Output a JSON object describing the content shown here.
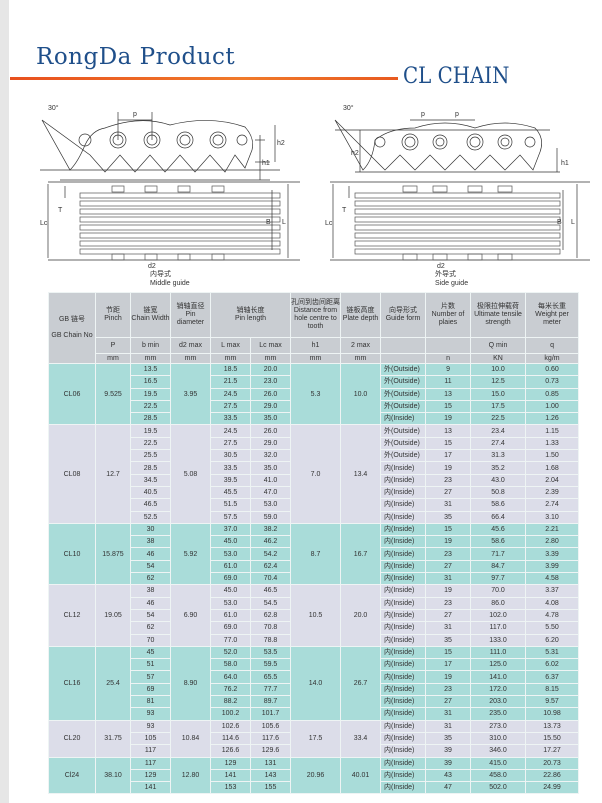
{
  "brand": "RongDa Product",
  "title": "CL CHAIN",
  "diagrams": {
    "labels": {
      "angle": "30°",
      "p": "p",
      "h1": "h1",
      "h2": "h2",
      "T": "T",
      "Lc": "Lc",
      "B": "B",
      "L": "L",
      "d2": "d2"
    },
    "left_caption_cn": "内导式",
    "left_caption_en": "Middle guide",
    "right_caption_cn": "外导式",
    "right_caption_en": "Side guide"
  },
  "table": {
    "headers": {
      "no_cn": "GB 链号",
      "no_en": "GB Chain No",
      "pitch_cn": "节距",
      "pitch_en": "Pinch",
      "pitch_sym": "P",
      "pitch_unit": "mm",
      "width_cn": "链宽",
      "width_en": "Chain Width",
      "width_sym": "b min",
      "width_unit": "mm",
      "pin_cn": "销轴直径",
      "pin_en": "Pin diameter",
      "pin_sym": "d2 max",
      "pin_unit": "mm",
      "len_cn": "销轴长度",
      "len_en": "Pin length",
      "L_sym": "L max",
      "Lc_sym": "Lc max",
      "L_unit": "mm",
      "Lc_unit": "mm",
      "dist_cn": "孔间到齿间距离",
      "dist_en": "Distance from hole centre to tooth",
      "dist_sym": "h1",
      "dist_unit": "mm",
      "plate_cn": "链板高度",
      "plate_en": "Plate depth",
      "plate_sym": "2 max",
      "plate_unit": "mm",
      "guide_cn": "向导形式",
      "guide_en": "Guide form",
      "n_cn": "片数",
      "n_en": "Number of plaies",
      "n_unit": "n",
      "q_cn": "极限拉伸载荷",
      "q_en": "Ultimate tensile strength",
      "q_sym": "Q min",
      "q_unit": "KN",
      "w_cn": "每米长重",
      "w_en": "Weight per meter",
      "w_sym": "q",
      "w_unit": "kg/m"
    },
    "groups": [
      {
        "no": "CL06",
        "pitch": "9.525",
        "d2": "3.95",
        "h1": "5.3",
        "plate": "10.0",
        "rows": [
          [
            "13.5",
            "18.5",
            "20.0",
            "外(Outside)",
            "9",
            "10.0",
            "0.60"
          ],
          [
            "16.5",
            "21.5",
            "23.0",
            "外(Outside)",
            "11",
            "12.5",
            "0.73"
          ],
          [
            "19.5",
            "24.5",
            "26.0",
            "外(Outside)",
            "13",
            "15.0",
            "0.85"
          ],
          [
            "22.5",
            "27.5",
            "29.0",
            "外(Outside)",
            "15",
            "17.5",
            "1.00"
          ],
          [
            "28.5",
            "33.5",
            "35.0",
            "内(Inside)",
            "19",
            "22.5",
            "1.26"
          ]
        ]
      },
      {
        "no": "CL08",
        "pitch": "12.7",
        "d2": "5.08",
        "h1": "7.0",
        "plate": "13.4",
        "rows": [
          [
            "19.5",
            "24.5",
            "26.0",
            "外(Outside)",
            "13",
            "23.4",
            "1.15"
          ],
          [
            "22.5",
            "27.5",
            "29.0",
            "外(Outside)",
            "15",
            "27.4",
            "1.33"
          ],
          [
            "25.5",
            "30.5",
            "32.0",
            "外(Outside)",
            "17",
            "31.3",
            "1.50"
          ],
          [
            "28.5",
            "33.5",
            "35.0",
            "内(Inside)",
            "19",
            "35.2",
            "1.68"
          ],
          [
            "34.5",
            "39.5",
            "41.0",
            "内(Inside)",
            "23",
            "43.0",
            "2.04"
          ],
          [
            "40.5",
            "45.5",
            "47.0",
            "内(Inside)",
            "27",
            "50.8",
            "2.39"
          ],
          [
            "46.5",
            "51.5",
            "53.0",
            "内(Inside)",
            "31",
            "58.6",
            "2.74"
          ],
          [
            "52.5",
            "57.5",
            "59.0",
            "内(Inside)",
            "35",
            "66.4",
            "3.10"
          ]
        ]
      },
      {
        "no": "CL10",
        "pitch": "15.875",
        "d2": "5.92",
        "h1": "8.7",
        "plate": "16.7",
        "rows": [
          [
            "30",
            "37.0",
            "38.2",
            "内(Inside)",
            "15",
            "45.6",
            "2.21"
          ],
          [
            "38",
            "45.0",
            "46.2",
            "内(Inside)",
            "19",
            "58.6",
            "2.80"
          ],
          [
            "46",
            "53.0",
            "54.2",
            "内(Inside)",
            "23",
            "71.7",
            "3.39"
          ],
          [
            "54",
            "61.0",
            "62.4",
            "内(Inside)",
            "27",
            "84.7",
            "3.99"
          ],
          [
            "62",
            "69.0",
            "70.4",
            "内(Inside)",
            "31",
            "97.7",
            "4.58"
          ]
        ]
      },
      {
        "no": "CL12",
        "pitch": "19.05",
        "d2": "6.90",
        "h1": "10.5",
        "plate": "20.0",
        "rows": [
          [
            "38",
            "45.0",
            "46.5",
            "内(Inside)",
            "19",
            "70.0",
            "3.37"
          ],
          [
            "46",
            "53.0",
            "54.5",
            "内(Inside)",
            "23",
            "86.0",
            "4.08"
          ],
          [
            "54",
            "61.0",
            "62.8",
            "内(Inside)",
            "27",
            "102.0",
            "4.78"
          ],
          [
            "62",
            "69.0",
            "70.8",
            "内(Inside)",
            "31",
            "117.0",
            "5.50"
          ],
          [
            "70",
            "77.0",
            "78.8",
            "内(Inside)",
            "35",
            "133.0",
            "6.20"
          ]
        ]
      },
      {
        "no": "CL16",
        "pitch": "25.4",
        "d2": "8.90",
        "h1": "14.0",
        "plate": "26.7",
        "rows": [
          [
            "45",
            "52.0",
            "53.5",
            "内(Inside)",
            "15",
            "111.0",
            "5.31"
          ],
          [
            "51",
            "58.0",
            "59.5",
            "内(Inside)",
            "17",
            "125.0",
            "6.02"
          ],
          [
            "57",
            "64.0",
            "65.5",
            "内(Inside)",
            "19",
            "141.0",
            "6.37"
          ],
          [
            "69",
            "76.2",
            "77.7",
            "内(Inside)",
            "23",
            "172.0",
            "8.15"
          ],
          [
            "81",
            "88.2",
            "89.7",
            "内(Inside)",
            "27",
            "203.0",
            "9.57"
          ],
          [
            "93",
            "100.2",
            "101.7",
            "内(Inside)",
            "31",
            "235.0",
            "10.98"
          ]
        ]
      },
      {
        "no": "CL20",
        "pitch": "31.75",
        "d2": "10.84",
        "h1": "17.5",
        "plate": "33.4",
        "rows": [
          [
            "93",
            "102.6",
            "105.6",
            "内(Inside)",
            "31",
            "273.0",
            "13.73"
          ],
          [
            "105",
            "114.6",
            "117.6",
            "内(Inside)",
            "35",
            "310.0",
            "15.50"
          ],
          [
            "117",
            "126.6",
            "129.6",
            "内(Inside)",
            "39",
            "346.0",
            "17.27"
          ]
        ]
      },
      {
        "no": "Cl24",
        "pitch": "38.10",
        "d2": "12.80",
        "h1": "20.96",
        "plate": "40.01",
        "rows": [
          [
            "117",
            "129",
            "131",
            "内(Inside)",
            "39",
            "415.0",
            "20.73"
          ],
          [
            "129",
            "141",
            "143",
            "内(Inside)",
            "43",
            "458.0",
            "22.86"
          ],
          [
            "141",
            "153",
            "155",
            "内(Inside)",
            "47",
            "502.0",
            "24.99"
          ]
        ]
      }
    ]
  },
  "colors": {
    "title": "#1f4f8a",
    "rule": "#e8501e",
    "band_a": "#a9dcd9",
    "band_b": "#dcdde9",
    "header": "#c9cdd2"
  }
}
